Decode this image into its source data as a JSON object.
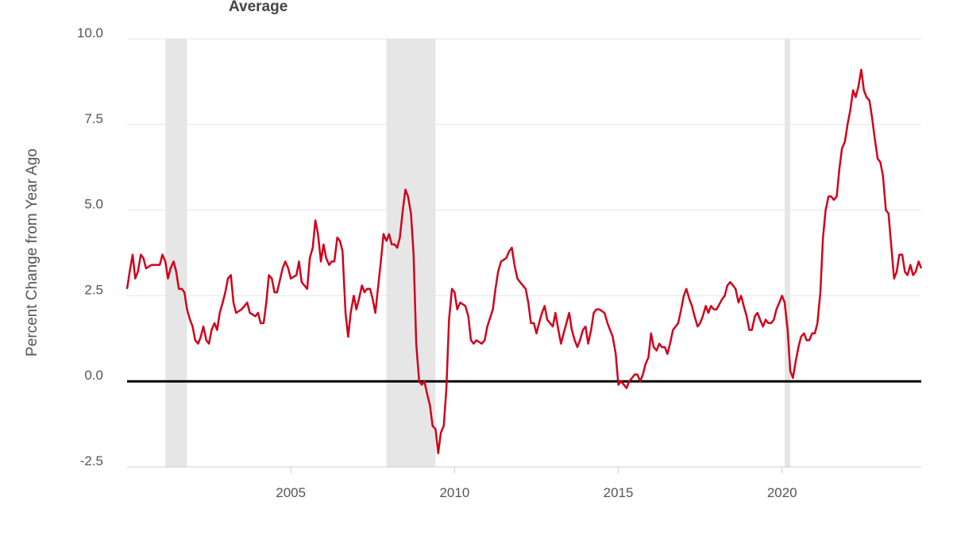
{
  "colors": {
    "series": "#d0021b",
    "zero_line": "#000000",
    "grid": "#e1e5eb",
    "recession": "#e6e6e6",
    "text": "#555555"
  },
  "chart_data": {
    "type": "line",
    "title": "Average",
    "ylabel": "Percent Change from Year Ago",
    "xlabel": "",
    "xlim": [
      2000.0,
      2024.25
    ],
    "ylim": [
      -2.5,
      10.0
    ],
    "y_ticks": [
      "10.0",
      "7.5",
      "5.0",
      "2.5",
      "0.0",
      "-2.5"
    ],
    "x_ticks": [
      "2005",
      "2010",
      "2015",
      "2020"
    ],
    "grid": true,
    "recessions": [
      [
        2001.17,
        2001.83
      ],
      [
        2007.92,
        2009.42
      ],
      [
        2020.08,
        2020.25
      ]
    ],
    "series": [
      {
        "values": [
          [
            2000.0,
            2.7
          ],
          [
            2000.08,
            3.2
          ],
          [
            2000.17,
            3.7
          ],
          [
            2000.25,
            3.0
          ],
          [
            2000.33,
            3.2
          ],
          [
            2000.42,
            3.7
          ],
          [
            2000.5,
            3.6
          ],
          [
            2000.58,
            3.3
          ],
          [
            2000.75,
            3.4
          ],
          [
            2001.0,
            3.4
          ],
          [
            2001.08,
            3.7
          ],
          [
            2001.17,
            3.5
          ],
          [
            2001.25,
            3.0
          ],
          [
            2001.33,
            3.3
          ],
          [
            2001.42,
            3.5
          ],
          [
            2001.5,
            3.2
          ],
          [
            2001.58,
            2.7
          ],
          [
            2001.67,
            2.7
          ],
          [
            2001.75,
            2.6
          ],
          [
            2001.83,
            2.1
          ],
          [
            2001.92,
            1.8
          ],
          [
            2002.0,
            1.6
          ],
          [
            2002.08,
            1.2
          ],
          [
            2002.17,
            1.1
          ],
          [
            2002.25,
            1.3
          ],
          [
            2002.33,
            1.6
          ],
          [
            2002.42,
            1.2
          ],
          [
            2002.5,
            1.1
          ],
          [
            2002.58,
            1.5
          ],
          [
            2002.67,
            1.7
          ],
          [
            2002.75,
            1.5
          ],
          [
            2002.83,
            2.0
          ],
          [
            2002.92,
            2.3
          ],
          [
            2003.0,
            2.6
          ],
          [
            2003.08,
            3.0
          ],
          [
            2003.17,
            3.1
          ],
          [
            2003.25,
            2.3
          ],
          [
            2003.33,
            2.0
          ],
          [
            2003.5,
            2.1
          ],
          [
            2003.67,
            2.3
          ],
          [
            2003.75,
            2.0
          ],
          [
            2003.92,
            1.9
          ],
          [
            2004.0,
            2.0
          ],
          [
            2004.08,
            1.7
          ],
          [
            2004.17,
            1.7
          ],
          [
            2004.25,
            2.3
          ],
          [
            2004.33,
            3.1
          ],
          [
            2004.42,
            3.0
          ],
          [
            2004.5,
            2.6
          ],
          [
            2004.58,
            2.6
          ],
          [
            2004.75,
            3.3
          ],
          [
            2004.83,
            3.5
          ],
          [
            2004.92,
            3.3
          ],
          [
            2005.0,
            3.0
          ],
          [
            2005.17,
            3.1
          ],
          [
            2005.25,
            3.5
          ],
          [
            2005.33,
            2.9
          ],
          [
            2005.5,
            2.7
          ],
          [
            2005.58,
            3.6
          ],
          [
            2005.67,
            3.9
          ],
          [
            2005.75,
            4.7
          ],
          [
            2005.83,
            4.3
          ],
          [
            2005.92,
            3.5
          ],
          [
            2006.0,
            4.0
          ],
          [
            2006.08,
            3.6
          ],
          [
            2006.17,
            3.4
          ],
          [
            2006.25,
            3.5
          ],
          [
            2006.33,
            3.5
          ],
          [
            2006.42,
            4.2
          ],
          [
            2006.5,
            4.1
          ],
          [
            2006.58,
            3.8
          ],
          [
            2006.67,
            2.0
          ],
          [
            2006.75,
            1.3
          ],
          [
            2006.83,
            2.0
          ],
          [
            2006.92,
            2.5
          ],
          [
            2007.0,
            2.1
          ],
          [
            2007.08,
            2.4
          ],
          [
            2007.17,
            2.8
          ],
          [
            2007.25,
            2.6
          ],
          [
            2007.33,
            2.7
          ],
          [
            2007.42,
            2.7
          ],
          [
            2007.5,
            2.4
          ],
          [
            2007.58,
            2.0
          ],
          [
            2007.67,
            2.8
          ],
          [
            2007.75,
            3.5
          ],
          [
            2007.83,
            4.3
          ],
          [
            2007.92,
            4.1
          ],
          [
            2008.0,
            4.3
          ],
          [
            2008.08,
            4.0
          ],
          [
            2008.17,
            4.0
          ],
          [
            2008.25,
            3.9
          ],
          [
            2008.33,
            4.2
          ],
          [
            2008.42,
            5.0
          ],
          [
            2008.5,
            5.6
          ],
          [
            2008.58,
            5.4
          ],
          [
            2008.67,
            4.9
          ],
          [
            2008.75,
            3.7
          ],
          [
            2008.83,
            1.1
          ],
          [
            2008.92,
            0.0
          ],
          [
            2009.0,
            -0.1
          ],
          [
            2009.08,
            0.0
          ],
          [
            2009.17,
            -0.4
          ],
          [
            2009.25,
            -0.7
          ],
          [
            2009.33,
            -1.3
          ],
          [
            2009.42,
            -1.4
          ],
          [
            2009.5,
            -2.1
          ],
          [
            2009.58,
            -1.5
          ],
          [
            2009.67,
            -1.3
          ],
          [
            2009.75,
            -0.2
          ],
          [
            2009.83,
            1.8
          ],
          [
            2009.92,
            2.7
          ],
          [
            2010.0,
            2.6
          ],
          [
            2010.08,
            2.1
          ],
          [
            2010.17,
            2.3
          ],
          [
            2010.33,
            2.2
          ],
          [
            2010.42,
            1.9
          ],
          [
            2010.5,
            1.2
          ],
          [
            2010.58,
            1.1
          ],
          [
            2010.67,
            1.2
          ],
          [
            2010.83,
            1.1
          ],
          [
            2010.92,
            1.2
          ],
          [
            2011.0,
            1.6
          ],
          [
            2011.17,
            2.1
          ],
          [
            2011.25,
            2.7
          ],
          [
            2011.33,
            3.2
          ],
          [
            2011.42,
            3.5
          ],
          [
            2011.58,
            3.6
          ],
          [
            2011.67,
            3.8
          ],
          [
            2011.75,
            3.9
          ],
          [
            2011.83,
            3.4
          ],
          [
            2011.92,
            3.0
          ],
          [
            2012.0,
            2.9
          ],
          [
            2012.17,
            2.7
          ],
          [
            2012.25,
            2.3
          ],
          [
            2012.33,
            1.7
          ],
          [
            2012.42,
            1.7
          ],
          [
            2012.5,
            1.4
          ],
          [
            2012.58,
            1.7
          ],
          [
            2012.67,
            2.0
          ],
          [
            2012.75,
            2.2
          ],
          [
            2012.83,
            1.8
          ],
          [
            2013.0,
            1.6
          ],
          [
            2013.08,
            2.0
          ],
          [
            2013.17,
            1.5
          ],
          [
            2013.25,
            1.1
          ],
          [
            2013.33,
            1.4
          ],
          [
            2013.5,
            2.0
          ],
          [
            2013.58,
            1.5
          ],
          [
            2013.67,
            1.2
          ],
          [
            2013.75,
            1.0
          ],
          [
            2013.83,
            1.2
          ],
          [
            2013.92,
            1.5
          ],
          [
            2014.0,
            1.6
          ],
          [
            2014.08,
            1.1
          ],
          [
            2014.17,
            1.5
          ],
          [
            2014.25,
            2.0
          ],
          [
            2014.33,
            2.1
          ],
          [
            2014.42,
            2.1
          ],
          [
            2014.58,
            2.0
          ],
          [
            2014.67,
            1.7
          ],
          [
            2014.83,
            1.3
          ],
          [
            2014.92,
            0.8
          ],
          [
            2015.0,
            -0.1
          ],
          [
            2015.08,
            0.0
          ],
          [
            2015.17,
            -0.1
          ],
          [
            2015.25,
            -0.2
          ],
          [
            2015.33,
            0.0
          ],
          [
            2015.42,
            0.1
          ],
          [
            2015.5,
            0.2
          ],
          [
            2015.58,
            0.2
          ],
          [
            2015.67,
            0.0
          ],
          [
            2015.75,
            0.2
          ],
          [
            2015.83,
            0.5
          ],
          [
            2015.92,
            0.7
          ],
          [
            2016.0,
            1.4
          ],
          [
            2016.08,
            1.0
          ],
          [
            2016.17,
            0.9
          ],
          [
            2016.25,
            1.1
          ],
          [
            2016.33,
            1.0
          ],
          [
            2016.42,
            1.0
          ],
          [
            2016.5,
            0.8
          ],
          [
            2016.58,
            1.1
          ],
          [
            2016.67,
            1.5
          ],
          [
            2016.75,
            1.6
          ],
          [
            2016.83,
            1.7
          ],
          [
            2016.92,
            2.1
          ],
          [
            2017.0,
            2.5
          ],
          [
            2017.08,
            2.7
          ],
          [
            2017.17,
            2.4
          ],
          [
            2017.25,
            2.2
          ],
          [
            2017.33,
            1.9
          ],
          [
            2017.42,
            1.6
          ],
          [
            2017.5,
            1.7
          ],
          [
            2017.58,
            1.9
          ],
          [
            2017.67,
            2.2
          ],
          [
            2017.75,
            2.0
          ],
          [
            2017.83,
            2.2
          ],
          [
            2017.92,
            2.1
          ],
          [
            2018.0,
            2.1
          ],
          [
            2018.17,
            2.4
          ],
          [
            2018.25,
            2.5
          ],
          [
            2018.33,
            2.8
          ],
          [
            2018.42,
            2.9
          ],
          [
            2018.58,
            2.7
          ],
          [
            2018.67,
            2.3
          ],
          [
            2018.75,
            2.5
          ],
          [
            2018.83,
            2.2
          ],
          [
            2018.92,
            1.9
          ],
          [
            2019.0,
            1.5
          ],
          [
            2019.08,
            1.5
          ],
          [
            2019.17,
            1.9
          ],
          [
            2019.25,
            2.0
          ],
          [
            2019.33,
            1.8
          ],
          [
            2019.42,
            1.6
          ],
          [
            2019.5,
            1.8
          ],
          [
            2019.58,
            1.7
          ],
          [
            2019.67,
            1.7
          ],
          [
            2019.75,
            1.8
          ],
          [
            2019.83,
            2.1
          ],
          [
            2019.92,
            2.3
          ],
          [
            2020.0,
            2.5
          ],
          [
            2020.08,
            2.3
          ],
          [
            2020.17,
            1.5
          ],
          [
            2020.25,
            0.3
          ],
          [
            2020.33,
            0.1
          ],
          [
            2020.42,
            0.6
          ],
          [
            2020.5,
            1.0
          ],
          [
            2020.58,
            1.3
          ],
          [
            2020.67,
            1.4
          ],
          [
            2020.75,
            1.2
          ],
          [
            2020.83,
            1.2
          ],
          [
            2020.92,
            1.4
          ],
          [
            2021.0,
            1.4
          ],
          [
            2021.08,
            1.7
          ],
          [
            2021.17,
            2.6
          ],
          [
            2021.25,
            4.2
          ],
          [
            2021.33,
            5.0
          ],
          [
            2021.42,
            5.4
          ],
          [
            2021.5,
            5.4
          ],
          [
            2021.58,
            5.3
          ],
          [
            2021.67,
            5.4
          ],
          [
            2021.75,
            6.2
          ],
          [
            2021.83,
            6.8
          ],
          [
            2021.92,
            7.0
          ],
          [
            2022.0,
            7.5
          ],
          [
            2022.08,
            7.9
          ],
          [
            2022.17,
            8.5
          ],
          [
            2022.25,
            8.3
          ],
          [
            2022.33,
            8.6
          ],
          [
            2022.42,
            9.1
          ],
          [
            2022.5,
            8.5
          ],
          [
            2022.58,
            8.3
          ],
          [
            2022.67,
            8.2
          ],
          [
            2022.75,
            7.7
          ],
          [
            2022.83,
            7.1
          ],
          [
            2022.92,
            6.5
          ],
          [
            2023.0,
            6.4
          ],
          [
            2023.08,
            6.0
          ],
          [
            2023.17,
            5.0
          ],
          [
            2023.25,
            4.9
          ],
          [
            2023.33,
            4.0
          ],
          [
            2023.42,
            3.0
          ],
          [
            2023.5,
            3.2
          ],
          [
            2023.58,
            3.7
          ],
          [
            2023.67,
            3.7
          ],
          [
            2023.75,
            3.2
          ],
          [
            2023.83,
            3.1
          ],
          [
            2023.92,
            3.4
          ],
          [
            2024.0,
            3.1
          ],
          [
            2024.08,
            3.2
          ],
          [
            2024.17,
            3.5
          ],
          [
            2024.25,
            3.3
          ]
        ]
      }
    ]
  }
}
